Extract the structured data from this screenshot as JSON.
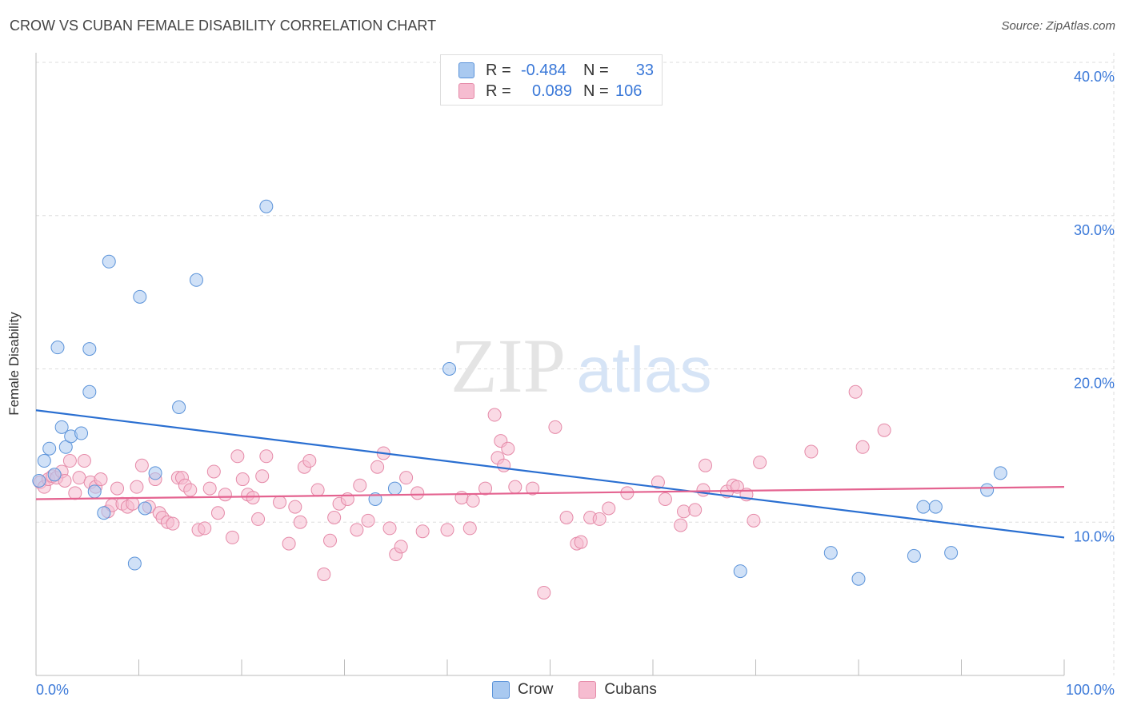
{
  "header": {
    "title": "CROW VS CUBAN FEMALE DISABILITY CORRELATION CHART",
    "source": "Source: ZipAtlas.com"
  },
  "watermark": {
    "zip": "ZIP",
    "atlas": "atlas"
  },
  "legend_top": [
    {
      "r_label": "R =",
      "r_value": "-0.484",
      "n_label": "N =",
      "n_value": "33"
    },
    {
      "r_label": "R =",
      "r_value": "0.089",
      "n_label": "N =",
      "n_value": "106"
    }
  ],
  "colors": {
    "crow_fill": "#a9c9f0",
    "crow_edge": "#5b93d9",
    "crow_line": "#2a6fd1",
    "cubans_fill": "#f6bcd0",
    "cubans_edge": "#e58aa8",
    "cubans_line": "#e46390",
    "tick_label": "#3a78d8",
    "grid": "#dddddd"
  },
  "chart_data": {
    "type": "scatter",
    "title": "CROW VS CUBAN FEMALE DISABILITY CORRELATION CHART",
    "xlabel": "",
    "ylabel": "Female Disability",
    "xlim": [
      0,
      100
    ],
    "ylim": [
      0,
      40
    ],
    "x_tick_labels": [
      "0.0%",
      "100.0%"
    ],
    "y_ticks": [
      10,
      20,
      30,
      40
    ],
    "y_tick_labels": [
      "10.0%",
      "20.0%",
      "30.0%",
      "40.0%"
    ],
    "grid": true,
    "legend_position": "bottom",
    "series": [
      {
        "name": "Crow",
        "r": -0.484,
        "n": 33,
        "trend": {
          "x": [
            0,
            100
          ],
          "y": [
            17.3,
            9.0
          ]
        },
        "points": [
          [
            0.3,
            12.7
          ],
          [
            0.8,
            14.0
          ],
          [
            1.3,
            14.8
          ],
          [
            1.8,
            13.1
          ],
          [
            2.1,
            21.4
          ],
          [
            2.5,
            16.2
          ],
          [
            2.9,
            14.9
          ],
          [
            3.4,
            15.6
          ],
          [
            4.4,
            15.8
          ],
          [
            5.2,
            21.3
          ],
          [
            5.2,
            18.5
          ],
          [
            5.7,
            12.0
          ],
          [
            6.6,
            10.6
          ],
          [
            7.1,
            27.0
          ],
          [
            9.6,
            7.3
          ],
          [
            10.1,
            24.7
          ],
          [
            10.6,
            10.9
          ],
          [
            11.6,
            13.2
          ],
          [
            13.9,
            17.5
          ],
          [
            15.6,
            25.8
          ],
          [
            22.4,
            30.6
          ],
          [
            33.0,
            11.5
          ],
          [
            34.9,
            12.2
          ],
          [
            40.2,
            20.0
          ],
          [
            68.5,
            6.8
          ],
          [
            77.3,
            8.0
          ],
          [
            80.0,
            6.3
          ],
          [
            85.4,
            7.8
          ],
          [
            86.3,
            11.0
          ],
          [
            87.5,
            11.0
          ],
          [
            89.0,
            8.0
          ],
          [
            92.5,
            12.1
          ],
          [
            93.8,
            13.2
          ]
        ]
      },
      {
        "name": "Cubans",
        "r": 0.089,
        "n": 106,
        "trend": {
          "x": [
            0,
            100
          ],
          "y": [
            11.5,
            12.3
          ]
        },
        "points": [
          [
            0.4,
            12.6
          ],
          [
            0.8,
            12.3
          ],
          [
            1.2,
            12.8
          ],
          [
            1.6,
            13.0
          ],
          [
            2.0,
            12.9
          ],
          [
            2.5,
            13.3
          ],
          [
            2.8,
            12.7
          ],
          [
            3.3,
            14.0
          ],
          [
            3.8,
            11.9
          ],
          [
            4.2,
            12.9
          ],
          [
            4.7,
            14.0
          ],
          [
            5.3,
            12.6
          ],
          [
            5.8,
            12.3
          ],
          [
            6.3,
            12.8
          ],
          [
            7.0,
            10.7
          ],
          [
            7.4,
            11.1
          ],
          [
            7.9,
            12.2
          ],
          [
            8.4,
            11.2
          ],
          [
            8.9,
            11.0
          ],
          [
            9.4,
            11.2
          ],
          [
            9.8,
            12.3
          ],
          [
            10.3,
            13.7
          ],
          [
            11.0,
            11.0
          ],
          [
            11.6,
            12.8
          ],
          [
            12.0,
            10.6
          ],
          [
            12.3,
            10.3
          ],
          [
            12.8,
            10.0
          ],
          [
            13.3,
            9.9
          ],
          [
            13.8,
            12.9
          ],
          [
            14.2,
            12.9
          ],
          [
            14.5,
            12.4
          ],
          [
            15.0,
            12.1
          ],
          [
            15.8,
            9.5
          ],
          [
            16.4,
            9.6
          ],
          [
            16.9,
            12.2
          ],
          [
            17.3,
            13.3
          ],
          [
            17.7,
            10.6
          ],
          [
            18.4,
            11.8
          ],
          [
            19.1,
            9.0
          ],
          [
            19.6,
            14.3
          ],
          [
            20.1,
            12.8
          ],
          [
            20.6,
            11.8
          ],
          [
            21.1,
            11.6
          ],
          [
            21.6,
            10.2
          ],
          [
            22.0,
            13.0
          ],
          [
            22.4,
            14.3
          ],
          [
            23.7,
            11.3
          ],
          [
            24.6,
            8.6
          ],
          [
            25.2,
            11.0
          ],
          [
            25.7,
            10.0
          ],
          [
            26.1,
            13.6
          ],
          [
            26.6,
            14.0
          ],
          [
            27.4,
            12.1
          ],
          [
            28.0,
            6.6
          ],
          [
            28.6,
            8.8
          ],
          [
            29.0,
            10.3
          ],
          [
            29.5,
            11.2
          ],
          [
            30.3,
            11.5
          ],
          [
            31.2,
            9.5
          ],
          [
            31.5,
            12.4
          ],
          [
            32.3,
            10.1
          ],
          [
            33.2,
            13.6
          ],
          [
            33.8,
            14.5
          ],
          [
            34.4,
            9.6
          ],
          [
            35.0,
            7.9
          ],
          [
            35.5,
            8.4
          ],
          [
            36.0,
            12.9
          ],
          [
            37.1,
            11.9
          ],
          [
            37.6,
            9.4
          ],
          [
            40.0,
            9.5
          ],
          [
            41.4,
            11.6
          ],
          [
            42.2,
            9.6
          ],
          [
            42.5,
            11.4
          ],
          [
            43.7,
            12.2
          ],
          [
            44.6,
            17.0
          ],
          [
            44.9,
            14.2
          ],
          [
            45.2,
            15.3
          ],
          [
            45.5,
            13.7
          ],
          [
            45.9,
            14.8
          ],
          [
            46.6,
            12.3
          ],
          [
            48.3,
            12.2
          ],
          [
            49.4,
            5.4
          ],
          [
            50.5,
            16.2
          ],
          [
            51.6,
            10.3
          ],
          [
            52.6,
            8.6
          ],
          [
            53.0,
            8.7
          ],
          [
            53.9,
            10.3
          ],
          [
            54.8,
            10.2
          ],
          [
            55.7,
            10.9
          ],
          [
            57.5,
            11.9
          ],
          [
            60.5,
            12.6
          ],
          [
            61.2,
            11.5
          ],
          [
            62.7,
            9.8
          ],
          [
            63.0,
            10.7
          ],
          [
            64.1,
            10.8
          ],
          [
            64.9,
            12.1
          ],
          [
            65.1,
            13.7
          ],
          [
            67.2,
            12.0
          ],
          [
            67.8,
            12.4
          ],
          [
            68.2,
            12.3
          ],
          [
            69.1,
            11.8
          ],
          [
            69.8,
            10.1
          ],
          [
            70.4,
            13.9
          ],
          [
            75.4,
            14.6
          ],
          [
            79.7,
            18.5
          ],
          [
            80.4,
            14.9
          ],
          [
            82.5,
            16.0
          ]
        ]
      }
    ]
  },
  "bottom_legend": {
    "crow": "Crow",
    "cubans": "Cubans"
  }
}
